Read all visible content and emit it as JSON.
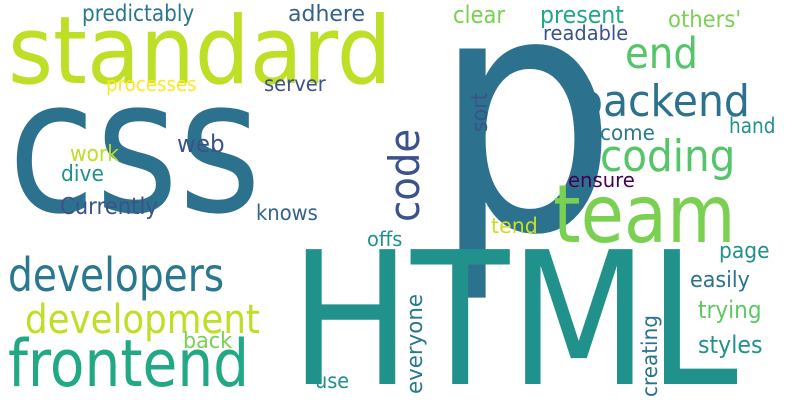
{
  "words": [
    {
      "text": "p",
      "color": "#2c728e",
      "rotated": false
    },
    {
      "text": "css",
      "color": "#2c728e",
      "rotated": false
    },
    {
      "text": "HTML",
      "color": "#21918c",
      "rotated": false
    },
    {
      "text": "standard",
      "color": "#bddf26",
      "rotated": false
    },
    {
      "text": "team",
      "color": "#7ad151",
      "rotated": false
    },
    {
      "text": "frontend",
      "color": "#22a884",
      "rotated": false
    },
    {
      "text": "developers",
      "color": "#2a788e",
      "rotated": false
    },
    {
      "text": "backend",
      "color": "#2c728e",
      "rotated": false
    },
    {
      "text": "coding",
      "color": "#54c568",
      "rotated": false
    },
    {
      "text": "development",
      "color": "#bddf26",
      "rotated": false
    },
    {
      "text": "end",
      "color": "#54c568",
      "rotated": false
    },
    {
      "text": "code",
      "color": "#3b528b",
      "rotated": true
    },
    {
      "text": "predictably",
      "color": "#2a788e",
      "rotated": false
    },
    {
      "text": "adhere",
      "color": "#33638d",
      "rotated": false
    },
    {
      "text": "clear",
      "color": "#7ad151",
      "rotated": false
    },
    {
      "text": "present",
      "color": "#22a884",
      "rotated": false
    },
    {
      "text": "others'",
      "color": "#7ad151",
      "rotated": false
    },
    {
      "text": "readable",
      "color": "#3b528b",
      "rotated": false
    },
    {
      "text": "processes",
      "color": "#fde725",
      "rotated": false
    },
    {
      "text": "server",
      "color": "#3b528b",
      "rotated": false
    },
    {
      "text": "sort",
      "color": "#3b528b",
      "rotated": true
    },
    {
      "text": "come",
      "color": "#2a788e",
      "rotated": false
    },
    {
      "text": "hand",
      "color": "#21918c",
      "rotated": false
    },
    {
      "text": "web",
      "color": "#3b528b",
      "rotated": false
    },
    {
      "text": "work",
      "color": "#bddf26",
      "rotated": false
    },
    {
      "text": "dive",
      "color": "#21918c",
      "rotated": false
    },
    {
      "text": "Currently",
      "color": "#3b528b",
      "rotated": false
    },
    {
      "text": "ensure",
      "color": "#440154",
      "rotated": false
    },
    {
      "text": "knows",
      "color": "#33638d",
      "rotated": false
    },
    {
      "text": "tend",
      "color": "#c7e020",
      "rotated": false
    },
    {
      "text": "offs",
      "color": "#21918c",
      "rotated": false
    },
    {
      "text": "page",
      "color": "#21918c",
      "rotated": false
    },
    {
      "text": "easily",
      "color": "#2c728e",
      "rotated": false
    },
    {
      "text": "trying",
      "color": "#5ec962",
      "rotated": false
    },
    {
      "text": "everyone",
      "color": "#2a788e",
      "rotated": true
    },
    {
      "text": "creating",
      "color": "#2c728e",
      "rotated": true
    },
    {
      "text": "styles",
      "color": "#21918c",
      "rotated": false
    },
    {
      "text": "back",
      "color": "#7ad151",
      "rotated": false
    },
    {
      "text": "use",
      "color": "#21918c",
      "rotated": false
    }
  ]
}
